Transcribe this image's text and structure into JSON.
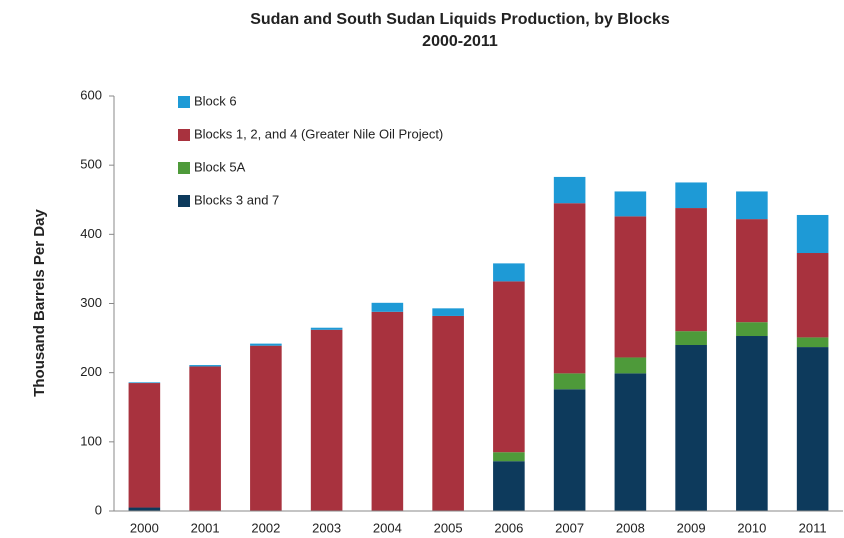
{
  "chart_data": {
    "type": "bar",
    "stacked": true,
    "title": "Sudan and South Sudan Liquids Production, by Blocks",
    "subtitle": "2000-2011",
    "ylabel": "Thousand Barrels Per Day",
    "categories": [
      "2000",
      "2001",
      "2002",
      "2003",
      "2004",
      "2005",
      "2006",
      "2007",
      "2008",
      "2009",
      "2010",
      "2011"
    ],
    "series": [
      {
        "name": "Blocks 3 and 7",
        "color": "#0d3a5c",
        "values": [
          5,
          0,
          0,
          0,
          0,
          0,
          72,
          176,
          199,
          240,
          253,
          237
        ]
      },
      {
        "name": "Block 5A",
        "color": "#4e9a3a",
        "values": [
          0,
          0,
          0,
          0,
          0,
          0,
          13,
          23,
          23,
          20,
          20,
          14
        ]
      },
      {
        "name": "Blocks 1, 2, and 4 (Greater Nile Oil Project)",
        "color": "#a8323e",
        "values": [
          180,
          209,
          239,
          262,
          288,
          282,
          247,
          246,
          204,
          178,
          149,
          122
        ]
      },
      {
        "name": "Block 6",
        "color": "#1e9ad6",
        "values": [
          1,
          2,
          3,
          3,
          13,
          11,
          26,
          38,
          36,
          37,
          40,
          55
        ]
      }
    ],
    "ylim": [
      0,
      600
    ],
    "yticks": [
      0,
      100,
      200,
      300,
      400,
      500,
      600
    ],
    "grid": false
  }
}
